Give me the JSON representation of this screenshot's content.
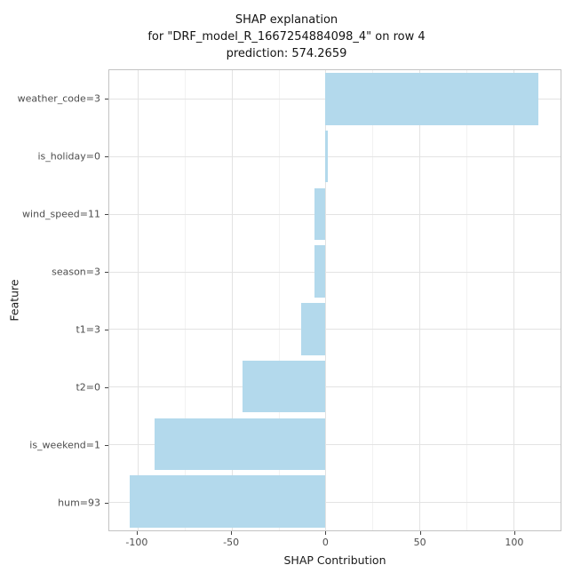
{
  "title": {
    "line1": "SHAP explanation",
    "line2": "for \"DRF_model_R_1667254884098_4\" on row 4",
    "line3": "prediction: 574.2659"
  },
  "axes": {
    "x_label": "SHAP Contribution",
    "y_label": "Feature"
  },
  "chart_data": {
    "type": "bar",
    "orientation": "horizontal",
    "title": "SHAP explanation for \"DRF_model_R_1667254884098_4\" on row 4 — prediction: 574.2659",
    "xlabel": "SHAP Contribution",
    "ylabel": "Feature",
    "categories": [
      "weather_code=3",
      "is_holiday=0",
      "wind_speed=11",
      "season=3",
      "t1=3",
      "t2=0",
      "is_weekend=1",
      "hum=93"
    ],
    "values": [
      113,
      1,
      -6,
      -6,
      -13,
      -44,
      -91,
      -104
    ],
    "xlim": [
      -115,
      125
    ],
    "x_ticks": [
      -100,
      -50,
      0,
      50,
      100
    ],
    "x_minor_ticks": [
      -75,
      -25,
      25,
      75
    ],
    "bar_width_fraction": 0.9,
    "grid": true,
    "legend": false
  },
  "colors": {
    "bar_fill": "#b3d9ec",
    "panel_border": "#c3c3c3",
    "grid_major": "#e3e3e3",
    "grid_minor": "#f2f2f2",
    "tick_text": "#4d4d4d",
    "title_text": "#141414"
  }
}
